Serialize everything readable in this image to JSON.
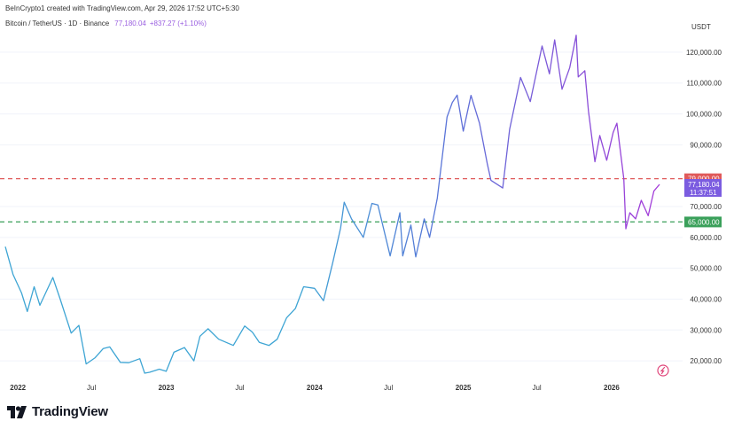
{
  "header": {
    "created_by": "BeInCrypto1 created with TradingView.com, Apr 29, 2026 17:52 UTC+5:30",
    "symbol": "Bitcoin / TetherUS · 1D · Binance",
    "last_price": "77,180.04",
    "change": "+837.27 (+1.10%)"
  },
  "brand": {
    "name": "TradingView",
    "logo_icon": "tradingview-logo-icon"
  },
  "colors": {
    "early_line": "#3ea5d4",
    "mid_line": "#5b72d8",
    "late_line": "#a63ad9",
    "resistance": "#e05a5a",
    "support": "#3aa05a",
    "price_label": "#7b5ce0"
  },
  "chart_data": {
    "type": "line",
    "currency_label": "USDT",
    "x_ticks": [
      "2022",
      "Jul",
      "2023",
      "Jul",
      "2024",
      "Jul",
      "2025",
      "Jul",
      "2026"
    ],
    "y_ticks": [
      "120,000.00",
      "110,000.00",
      "100,000.00",
      "90,000.00",
      "70,000.00",
      "60,000.00",
      "50,000.00",
      "40,000.00",
      "30,000.00",
      "20,000.00"
    ],
    "ylim": [
      14000,
      126000
    ],
    "x_start": "2021-12-01",
    "x_end": "2026-04-29",
    "series": [
      {
        "dates": [
          "2021-12-01",
          "2021-12-20",
          "2022-01-10",
          "2022-01-24",
          "2022-02-10",
          "2022-02-24",
          "2022-03-28",
          "2022-04-15",
          "2022-05-12",
          "2022-05-31",
          "2022-06-18",
          "2022-07-10",
          "2022-07-30",
          "2022-08-15",
          "2022-09-10",
          "2022-10-01",
          "2022-10-28",
          "2022-11-09",
          "2022-11-21",
          "2022-12-15",
          "2023-01-01",
          "2023-01-20",
          "2023-02-15",
          "2023-03-10",
          "2023-03-25",
          "2023-04-14",
          "2023-05-10",
          "2023-06-15",
          "2023-07-13",
          "2023-08-01",
          "2023-08-18",
          "2023-09-11",
          "2023-10-01",
          "2023-10-24",
          "2023-11-15",
          "2023-12-05",
          "2024-01-01",
          "2024-01-23",
          "2024-02-15",
          "2024-03-05",
          "2024-03-14",
          "2024-04-01",
          "2024-04-30",
          "2024-05-21",
          "2024-06-05",
          "2024-07-05",
          "2024-07-29",
          "2024-08-05",
          "2024-08-25",
          "2024-09-06",
          "2024-09-27",
          "2024-10-10",
          "2024-10-29",
          "2024-11-12",
          "2024-11-22",
          "2024-12-05",
          "2024-12-17",
          "2025-01-01",
          "2025-01-20",
          "2025-02-10",
          "2025-03-01",
          "2025-03-10",
          "2025-04-08",
          "2025-04-25",
          "2025-05-22",
          "2025-06-15",
          "2025-07-14",
          "2025-08-01",
          "2025-08-14",
          "2025-09-01",
          "2025-09-20",
          "2025-10-06",
          "2025-10-11",
          "2025-10-27",
          "2025-11-05",
          "2025-11-21",
          "2025-12-03",
          "2025-12-20",
          "2026-01-05",
          "2026-01-14",
          "2026-01-31",
          "2026-02-05",
          "2026-02-15",
          "2026-03-01",
          "2026-03-15",
          "2026-04-01",
          "2026-04-15",
          "2026-04-29"
        ],
        "values": [
          57000,
          48000,
          42000,
          36000,
          44000,
          38000,
          47000,
          40000,
          29000,
          31500,
          19000,
          21000,
          24000,
          24500,
          19500,
          19400,
          20700,
          16000,
          16300,
          17300,
          16600,
          22800,
          24300,
          20000,
          28000,
          30400,
          27000,
          25000,
          31300,
          29300,
          26000,
          25000,
          27000,
          33900,
          37000,
          44000,
          43500,
          39500,
          52000,
          63000,
          71400,
          66000,
          60000,
          71000,
          70500,
          54000,
          68000,
          54000,
          64000,
          53700,
          66000,
          60000,
          72700,
          88000,
          99000,
          103700,
          106100,
          94400,
          106000,
          97000,
          84000,
          78500,
          76000,
          95000,
          111800,
          104000,
          122000,
          113000,
          124000,
          108000,
          115000,
          125500,
          112000,
          114000,
          101000,
          84500,
          93000,
          85000,
          94000,
          97000,
          79000,
          62800,
          68000,
          66000,
          72000,
          67000,
          75000,
          77180
        ]
      }
    ],
    "horizontal_levels": [
      {
        "value": 79000,
        "label": "79,000.00",
        "style": "dashed",
        "color": "#e05a5a"
      },
      {
        "value": 65000,
        "label": "65,000.00",
        "style": "dashed",
        "color": "#3aa05a"
      }
    ],
    "last_price_label": {
      "value": 77180.04,
      "text": "77,180.04",
      "countdown": "11:37:51"
    }
  }
}
